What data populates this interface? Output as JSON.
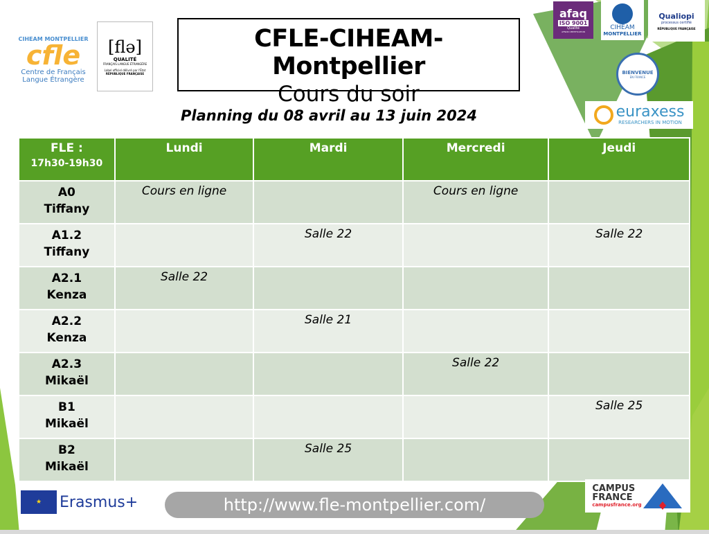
{
  "logos": {
    "cfle": {
      "arc": "CIHEAM MONTPELLIER",
      "main": "cfle",
      "line1": "Centre de Français",
      "line2": "Langue Étrangère"
    },
    "fle_label": {
      "main": "[flə]",
      "quality": "QUALITÉ",
      "sub": "FRANÇAIS LANGUE ÉTRANGÈRE",
      "note": "Label officiel délivré par l'État",
      "republic": "RÉPUBLIQUE FRANÇAISE"
    },
    "afaq": {
      "main": "afaq",
      "iso": "ISO 9001",
      "q": "Qualité",
      "cert": "AFNOR CERTIFICATION"
    },
    "ciheam": {
      "line1": "CIHEAM",
      "line2": "MONTPELLIER"
    },
    "qualiopi": {
      "main": "Qualiopi",
      "sub": "processus certifié",
      "republic": "RÉPUBLIQUE FRANÇAISE"
    },
    "bienvenue": {
      "top": "BIENVENUE",
      "sub": "EN FRANCE"
    },
    "euraxess": {
      "main": "euraxess",
      "sub": "RESEARCHERS IN MOTION"
    },
    "erasmus": {
      "label": "Erasmus+"
    },
    "campus_france": {
      "line1": "CAMPUS",
      "line2": "FRANCE",
      "url": "campusfrance.org"
    }
  },
  "header": {
    "title": "CFLE-CIHEAM-Montpellier",
    "subtitle": "Cours du soir"
  },
  "planning": "Planning du 08 avril au 13 juin 2024",
  "table": {
    "corner": {
      "line1": "FLE :",
      "line2": "17h30-19h30"
    },
    "days": [
      "Lundi",
      "Mardi",
      "Mercredi",
      "Jeudi"
    ],
    "rows": [
      {
        "level": "A0",
        "teacher": "Tiffany",
        "cells": [
          "Cours en ligne",
          "",
          "Cours en ligne",
          ""
        ]
      },
      {
        "level": "A1.2",
        "teacher": "Tiffany",
        "cells": [
          "",
          "Salle 22",
          "",
          "Salle 22"
        ]
      },
      {
        "level": "A2.1",
        "teacher": "Kenza",
        "cells": [
          "Salle 22",
          "",
          "",
          ""
        ]
      },
      {
        "level": "A2.2",
        "teacher": "Kenza",
        "cells": [
          "",
          "Salle 21",
          "",
          ""
        ]
      },
      {
        "level": "A2.3",
        "teacher": "Mikaël",
        "cells": [
          "",
          "",
          "Salle 22",
          ""
        ]
      },
      {
        "level": "B1",
        "teacher": "Mikaël",
        "cells": [
          "",
          "",
          "",
          "Salle 25"
        ]
      },
      {
        "level": "B2",
        "teacher": "Mikaël",
        "cells": [
          "",
          "Salle 25",
          "",
          ""
        ]
      }
    ]
  },
  "footer": {
    "url": "http://www.fle-montpellier.com/"
  },
  "colors": {
    "header_green": "#56a024",
    "row_dark": "#d3dfcf",
    "row_light": "#e9eee7",
    "deco_green": "#8cc63f"
  }
}
